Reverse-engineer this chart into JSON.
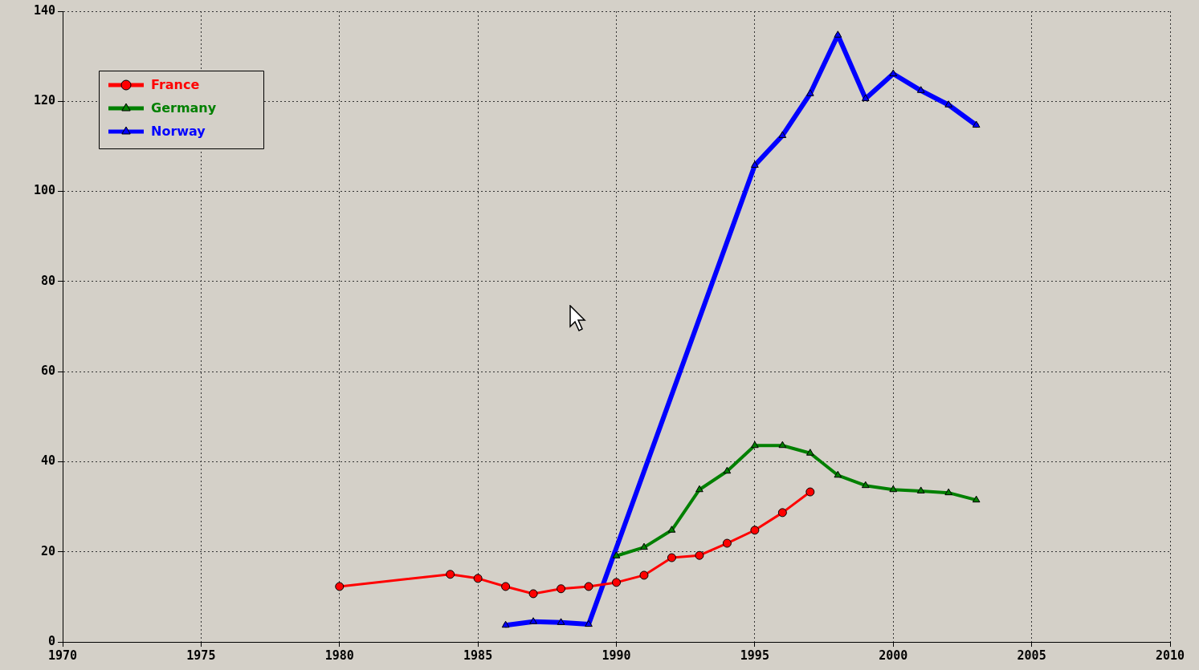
{
  "chart_data": {
    "type": "line",
    "xlim": [
      1970,
      2010
    ],
    "xticks": [
      1970,
      1975,
      1980,
      1985,
      1990,
      1995,
      2000,
      2005,
      2010
    ],
    "ylim": [
      0,
      140
    ],
    "yticks": [
      0,
      20,
      40,
      60,
      80,
      100,
      120,
      140
    ],
    "grid": true,
    "legend": "top left",
    "line_style": "solid",
    "series": [
      {
        "name": "France",
        "color": "#ff0000",
        "marker": "circle",
        "x": [
          1980,
          1984,
          1985,
          1986,
          1987,
          1988,
          1989,
          1990,
          1991,
          1992,
          1993,
          1994,
          1995,
          1996,
          1997
        ],
        "values": [
          12.3,
          15.0,
          14.1,
          12.3,
          10.7,
          11.8,
          12.3,
          13.2,
          14.8,
          18.7,
          19.2,
          21.9,
          24.8,
          28.7,
          33.3
        ]
      },
      {
        "name": "Germany",
        "color": "#008000",
        "marker": "triangle",
        "x": [
          1990,
          1991,
          1992,
          1993,
          1994,
          1995,
          1996,
          1997,
          1998,
          1999,
          2000,
          2001,
          2002,
          2003
        ],
        "values": [
          19.1,
          21.0,
          24.8,
          33.8,
          37.9,
          43.6,
          43.6,
          41.9,
          37.0,
          34.7,
          33.8,
          33.5,
          33.1,
          31.5
        ]
      },
      {
        "name": "Norway",
        "color": "#0000ff",
        "marker": "triangle",
        "x": [
          1986,
          1987,
          1988,
          1989,
          1995,
          1996,
          1997,
          1998,
          1999,
          2000,
          2001,
          2002,
          2003
        ],
        "values": [
          3.7,
          4.5,
          4.3,
          3.9,
          105.8,
          112.4,
          121.7,
          134.7,
          120.6,
          126.1,
          122.4,
          119.2,
          114.7
        ]
      }
    ]
  }
}
